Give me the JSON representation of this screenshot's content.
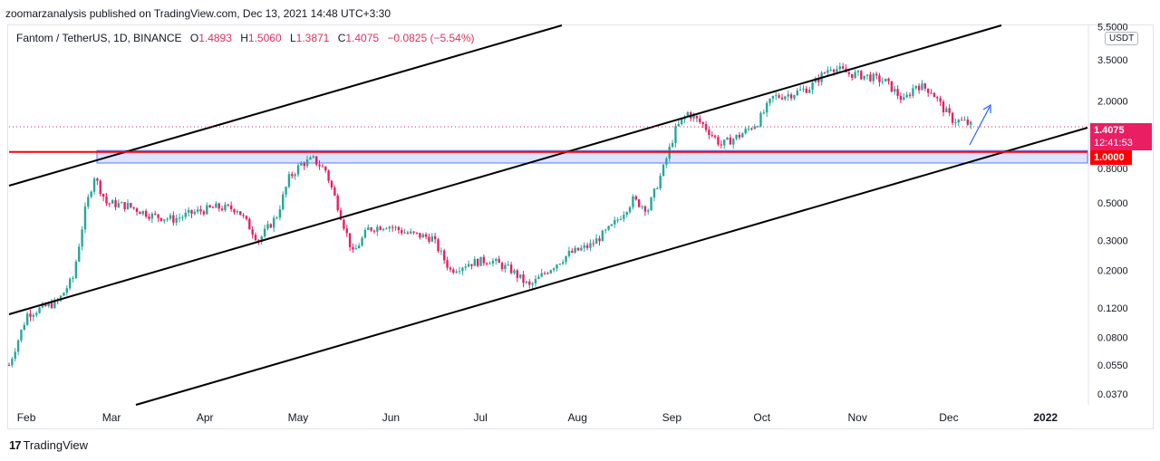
{
  "header": {
    "published_text": "zoomarzanalysis published on TradingView.com, Dec 13, 2021 14:48 UTC+3:30"
  },
  "legend": {
    "symbol": "Fantom / TetherUS, 1D, BINANCE",
    "open_label": "O",
    "open": "1.4893",
    "high_label": "H",
    "high": "1.5060",
    "low_label": "L",
    "low": "1.3871",
    "close_label": "C",
    "close": "1.4075",
    "change": "−0.0825 (−5.54%)"
  },
  "axis": {
    "currency": "USDT",
    "current_price": "1.4075",
    "countdown": "12:41:53",
    "level_label": "1.0000"
  },
  "footer": {
    "brand": "TradingView"
  },
  "colors": {
    "up": "#26a69a",
    "down": "#e91e63",
    "channel": "#000000",
    "level": "#ff0000",
    "zone_fill": "#d6dcff",
    "zone_border": "#2962ff",
    "arrow": "#2962ff"
  },
  "chart_data": {
    "type": "candlestick",
    "scale": "log",
    "ylim": [
      0.032,
      5.6
    ],
    "y_ticks": [
      "5.5000",
      "3.5000",
      "2.0000",
      "1.0000",
      "0.8000",
      "0.5000",
      "0.3000",
      "0.2000",
      "0.1200",
      "0.0800",
      "0.0550",
      "0.0370"
    ],
    "x_ticks": [
      "Feb",
      "Mar",
      "Apr",
      "May",
      "Jun",
      "Jul",
      "Aug",
      "Sep",
      "Oct",
      "Nov",
      "Dec",
      "2022"
    ],
    "horizontal_level": 1.0,
    "support_zone": [
      0.86,
      1.02
    ],
    "series_close": [
      {
        "date": "2021-01-30",
        "close": 0.055
      },
      {
        "date": "2021-02-05",
        "close": 0.11
      },
      {
        "date": "2021-02-10",
        "close": 0.12
      },
      {
        "date": "2021-02-15",
        "close": 0.13
      },
      {
        "date": "2021-02-20",
        "close": 0.18
      },
      {
        "date": "2021-02-24",
        "close": 0.45
      },
      {
        "date": "2021-02-27",
        "close": 0.72
      },
      {
        "date": "2021-03-03",
        "close": 0.5
      },
      {
        "date": "2021-03-10",
        "close": 0.48
      },
      {
        "date": "2021-03-18",
        "close": 0.42
      },
      {
        "date": "2021-03-25",
        "close": 0.4
      },
      {
        "date": "2021-04-01",
        "close": 0.44
      },
      {
        "date": "2021-04-08",
        "close": 0.47
      },
      {
        "date": "2021-04-15",
        "close": 0.46
      },
      {
        "date": "2021-04-22",
        "close": 0.3
      },
      {
        "date": "2021-04-28",
        "close": 0.42
      },
      {
        "date": "2021-05-02",
        "close": 0.7
      },
      {
        "date": "2021-05-06",
        "close": 0.85
      },
      {
        "date": "2021-05-10",
        "close": 0.9
      },
      {
        "date": "2021-05-14",
        "close": 0.78
      },
      {
        "date": "2021-05-18",
        "close": 0.48
      },
      {
        "date": "2021-05-23",
        "close": 0.25
      },
      {
        "date": "2021-05-28",
        "close": 0.35
      },
      {
        "date": "2021-06-03",
        "close": 0.37
      },
      {
        "date": "2021-06-10",
        "close": 0.33
      },
      {
        "date": "2021-06-18",
        "close": 0.31
      },
      {
        "date": "2021-06-24",
        "close": 0.2
      },
      {
        "date": "2021-06-30",
        "close": 0.22
      },
      {
        "date": "2021-07-07",
        "close": 0.23
      },
      {
        "date": "2021-07-14",
        "close": 0.2
      },
      {
        "date": "2021-07-20",
        "close": 0.16
      },
      {
        "date": "2021-07-26",
        "close": 0.2
      },
      {
        "date": "2021-08-02",
        "close": 0.25
      },
      {
        "date": "2021-08-09",
        "close": 0.28
      },
      {
        "date": "2021-08-16",
        "close": 0.36
      },
      {
        "date": "2021-08-23",
        "close": 0.52
      },
      {
        "date": "2021-08-28",
        "close": 0.46
      },
      {
        "date": "2021-09-02",
        "close": 0.8
      },
      {
        "date": "2021-09-06",
        "close": 1.35
      },
      {
        "date": "2021-09-10",
        "close": 1.7
      },
      {
        "date": "2021-09-15",
        "close": 1.45
      },
      {
        "date": "2021-09-21",
        "close": 1.1
      },
      {
        "date": "2021-09-27",
        "close": 1.25
      },
      {
        "date": "2021-10-03",
        "close": 1.5
      },
      {
        "date": "2021-10-08",
        "close": 2.1
      },
      {
        "date": "2021-10-14",
        "close": 2.2
      },
      {
        "date": "2021-10-20",
        "close": 2.4
      },
      {
        "date": "2021-10-27",
        "close": 3.2
      },
      {
        "date": "2021-11-02",
        "close": 2.9
      },
      {
        "date": "2021-11-08",
        "close": 2.8
      },
      {
        "date": "2021-11-14",
        "close": 2.6
      },
      {
        "date": "2021-11-20",
        "close": 2.0
      },
      {
        "date": "2021-11-24",
        "close": 2.5
      },
      {
        "date": "2021-11-29",
        "close": 2.3
      },
      {
        "date": "2021-12-03",
        "close": 1.8
      },
      {
        "date": "2021-12-06",
        "close": 1.55
      },
      {
        "date": "2021-12-10",
        "close": 1.5
      },
      {
        "date": "2021-12-13",
        "close": 1.4075
      }
    ]
  }
}
